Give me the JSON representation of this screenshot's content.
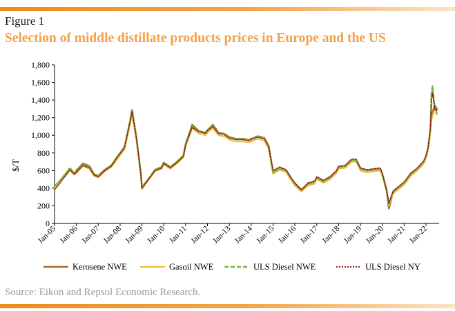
{
  "figure_label": "Figure 1",
  "title": "Selection of middle distillate products prices in Europe and the US",
  "source": "Source: Eikon and Repsol Economic Research.",
  "colors": {
    "accent_bar": "#ee8a1a",
    "title": "#f0a24c"
  },
  "chart_data": {
    "type": "line",
    "ylabel": "$/T",
    "ylim": [
      0,
      1800
    ],
    "yticks": [
      "0",
      "200",
      "400",
      "600",
      "800",
      "1,000",
      "1,200",
      "1,400",
      "1,600",
      "1,800"
    ],
    "xticks": [
      "Jan-05",
      "Jan-06",
      "Jan-07",
      "Jan-08",
      "Jan-09",
      "Jan-10",
      "Jan-11",
      "Jan-12",
      "Jan-13",
      "Jan-14",
      "Jan-15",
      "Jan-16",
      "Jan-17",
      "Jan-18",
      "Jan-19",
      "Jan-20",
      "Jan-21",
      "Jan-22"
    ],
    "xrange": [
      2005.0,
      2022.6
    ],
    "grid": false,
    "legend_position": "bottom",
    "x": [
      2005.0,
      2005.25,
      2005.5,
      2005.7,
      2005.9,
      2006.0,
      2006.3,
      2006.6,
      2006.8,
      2007.0,
      2007.3,
      2007.6,
      2007.9,
      2008.2,
      2008.45,
      2008.55,
      2008.75,
      2008.95,
      2009.0,
      2009.3,
      2009.6,
      2009.9,
      2010.0,
      2010.3,
      2010.6,
      2010.9,
      2011.0,
      2011.3,
      2011.6,
      2011.9,
      2012.0,
      2012.25,
      2012.5,
      2012.75,
      2013.0,
      2013.3,
      2013.6,
      2013.9,
      2014.0,
      2014.3,
      2014.6,
      2014.8,
      2015.0,
      2015.3,
      2015.6,
      2015.8,
      2016.0,
      2016.3,
      2016.6,
      2016.9,
      2017.0,
      2017.3,
      2017.6,
      2017.9,
      2018.0,
      2018.3,
      2018.6,
      2018.8,
      2019.0,
      2019.3,
      2019.6,
      2019.9,
      2020.0,
      2020.2,
      2020.3,
      2020.5,
      2020.8,
      2021.0,
      2021.3,
      2021.6,
      2021.9,
      2022.0,
      2022.1,
      2022.2,
      2022.25,
      2022.3,
      2022.4,
      2022.5
    ],
    "series": [
      {
        "name": "Kerosene NWE",
        "color": "#a86b2d",
        "dash": "none",
        "width": 2.6,
        "values": [
          410,
          480,
          560,
          620,
          560,
          600,
          680,
          650,
          560,
          540,
          610,
          660,
          760,
          860,
          1140,
          1260,
          960,
          560,
          400,
          500,
          610,
          640,
          690,
          640,
          700,
          770,
          900,
          1120,
          1050,
          1030,
          1060,
          1120,
          1030,
          1020,
          980,
          960,
          960,
          950,
          960,
          990,
          970,
          880,
          580,
          630,
          600,
          520,
          450,
          380,
          450,
          470,
          520,
          480,
          520,
          590,
          640,
          650,
          720,
          720,
          620,
          600,
          610,
          620,
          560,
          380,
          170,
          360,
          420,
          460,
          560,
          620,
          700,
          760,
          860,
          1050,
          1200,
          1260,
          1340,
          1300
        ]
      },
      {
        "name": "Gasoil NWE",
        "color": "#f2b830",
        "dash": "none",
        "width": 2,
        "values": [
          400,
          470,
          540,
          600,
          550,
          570,
          650,
          620,
          540,
          520,
          590,
          640,
          740,
          840,
          1110,
          1230,
          940,
          540,
          390,
          490,
          590,
          620,
          670,
          620,
          680,
          750,
          880,
          1080,
          1020,
          1000,
          1030,
          1080,
          1000,
          990,
          950,
          930,
          930,
          920,
          930,
          960,
          940,
          850,
          560,
          610,
          580,
          500,
          430,
          360,
          430,
          450,
          500,
          460,
          500,
          570,
          620,
          630,
          700,
          700,
          600,
          580,
          590,
          600,
          540,
          360,
          200,
          340,
          400,
          440,
          540,
          600,
          680,
          740,
          840,
          1020,
          1170,
          1220,
          1300,
          1260
        ]
      },
      {
        "name": "ULS Diesel NWE",
        "color": "#7ab648",
        "dash": "6,3",
        "width": 2.4,
        "values": [
          420,
          490,
          560,
          630,
          570,
          590,
          670,
          640,
          560,
          540,
          610,
          660,
          770,
          870,
          1160,
          1300,
          980,
          570,
          410,
          510,
          610,
          640,
          690,
          640,
          700,
          770,
          900,
          1100,
          1050,
          1030,
          1060,
          1110,
          1030,
          1020,
          980,
          960,
          960,
          950,
          960,
          990,
          970,
          880,
          580,
          630,
          600,
          520,
          450,
          380,
          450,
          470,
          520,
          480,
          520,
          590,
          640,
          650,
          720,
          720,
          620,
          600,
          610,
          620,
          560,
          380,
          220,
          360,
          420,
          460,
          560,
          620,
          700,
          760,
          860,
          1060,
          1480,
          1560,
          1300,
          1240
        ]
      },
      {
        "name": "ULS Diesel NY",
        "color": "#8b1a1a",
        "dash": "2,2",
        "width": 1.6,
        "values": [
          380,
          460,
          540,
          610,
          560,
          580,
          660,
          630,
          550,
          530,
          600,
          650,
          760,
          860,
          1150,
          1270,
          960,
          560,
          400,
          500,
          600,
          630,
          680,
          630,
          690,
          760,
          890,
          1090,
          1040,
          1020,
          1050,
          1100,
          1020,
          1010,
          970,
          950,
          950,
          940,
          950,
          980,
          960,
          870,
          600,
          640,
          610,
          530,
          460,
          380,
          460,
          480,
          530,
          490,
          530,
          600,
          650,
          660,
          730,
          730,
          630,
          610,
          620,
          630,
          570,
          370,
          230,
          370,
          430,
          470,
          570,
          630,
          710,
          770,
          870,
          1080,
          1400,
          1480,
          1300,
          1280
        ]
      }
    ]
  }
}
